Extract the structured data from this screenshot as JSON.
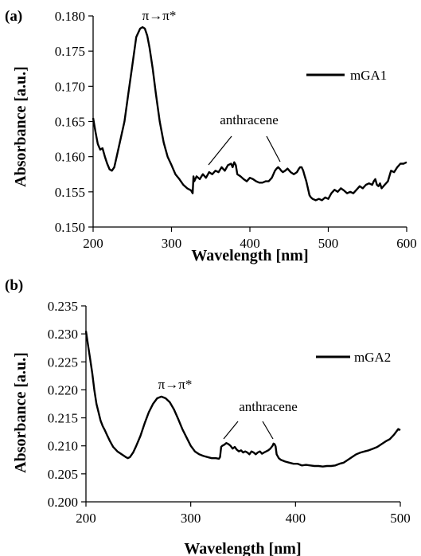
{
  "chart_data": [
    {
      "type": "line",
      "panel_label": "(a)",
      "title": "",
      "xlabel": "Wavelength [nm]",
      "ylabel": "Absorbance [a.u.]",
      "xlim": [
        200,
        600
      ],
      "ylim": [
        0.15,
        0.18
      ],
      "xticks": [
        "200",
        "300",
        "400",
        "500",
        "600"
      ],
      "yticks": [
        "0.150",
        "0.155",
        "0.160",
        "0.165",
        "0.170",
        "0.175",
        "0.180"
      ],
      "legend": "top-right",
      "annotations": {
        "peak": "π→π*",
        "anthracene": "anthracene"
      },
      "series": [
        {
          "name": "mGA1",
          "color": "#000000",
          "x": [
            200,
            203,
            206,
            209,
            212,
            215,
            218,
            221,
            224,
            227,
            230,
            235,
            240,
            245,
            250,
            255,
            260,
            263,
            266,
            269,
            272,
            276,
            280,
            285,
            290,
            295,
            300,
            305,
            310,
            315,
            320,
            325,
            327,
            328,
            329,
            332,
            336,
            340,
            344,
            348,
            352,
            356,
            360,
            364,
            368,
            372,
            376,
            378,
            380,
            382,
            384,
            388,
            392,
            396,
            400,
            404,
            408,
            412,
            416,
            420,
            424,
            428,
            432,
            434,
            436,
            438,
            440,
            442,
            445,
            448,
            452,
            456,
            460,
            462,
            464,
            466,
            468,
            470,
            472,
            474,
            476,
            478,
            480,
            484,
            488,
            492,
            496,
            500,
            504,
            508,
            512,
            516,
            520,
            524,
            528,
            532,
            536,
            540,
            544,
            548,
            552,
            556,
            558,
            560,
            562,
            564,
            566,
            568,
            572,
            576,
            580,
            584,
            588,
            592,
            596,
            600
          ],
          "values": [
            0.1655,
            0.1635,
            0.1618,
            0.161,
            0.1612,
            0.16,
            0.159,
            0.1582,
            0.158,
            0.1585,
            0.16,
            0.1625,
            0.165,
            0.169,
            0.173,
            0.177,
            0.1782,
            0.1784,
            0.1782,
            0.1772,
            0.1755,
            0.1725,
            0.169,
            0.165,
            0.162,
            0.16,
            0.1588,
            0.1575,
            0.1568,
            0.156,
            0.1555,
            0.1552,
            0.1548,
            0.1572,
            0.1565,
            0.1572,
            0.1568,
            0.1575,
            0.157,
            0.1578,
            0.1575,
            0.158,
            0.1578,
            0.1585,
            0.158,
            0.1588,
            0.159,
            0.1585,
            0.1592,
            0.1588,
            0.1575,
            0.1572,
            0.1568,
            0.1565,
            0.157,
            0.1568,
            0.1565,
            0.1563,
            0.1563,
            0.1565,
            0.1565,
            0.157,
            0.158,
            0.1583,
            0.1585,
            0.1583,
            0.158,
            0.1578,
            0.158,
            0.1583,
            0.1578,
            0.1575,
            0.1578,
            0.1582,
            0.1585,
            0.1585,
            0.158,
            0.1572,
            0.1565,
            0.1555,
            0.1545,
            0.1542,
            0.154,
            0.1538,
            0.154,
            0.1538,
            0.1542,
            0.154,
            0.1548,
            0.1553,
            0.155,
            0.1555,
            0.1552,
            0.1548,
            0.155,
            0.1548,
            0.1553,
            0.1558,
            0.1555,
            0.156,
            0.1562,
            0.156,
            0.1565,
            0.1568,
            0.156,
            0.1558,
            0.1562,
            0.1555,
            0.156,
            0.1565,
            0.158,
            0.1578,
            0.1585,
            0.159,
            0.159,
            0.1592
          ]
        }
      ]
    },
    {
      "type": "line",
      "panel_label": "(b)",
      "title": "",
      "xlabel": "Wavelength [nm]",
      "ylabel": "Absorbance [a.u.]",
      "xlim": [
        200,
        500
      ],
      "ylim": [
        0.2,
        0.235
      ],
      "xticks": [
        "200",
        "300",
        "400",
        "500"
      ],
      "yticks": [
        "0.200",
        "0.205",
        "0.210",
        "0.215",
        "0.220",
        "0.225",
        "0.230",
        "0.235"
      ],
      "legend": "top-right",
      "annotations": {
        "peak": "π→π*",
        "anthracene": "anthracene"
      },
      "series": [
        {
          "name": "mGA2",
          "color": "#000000",
          "x": [
            200,
            202,
            204,
            206,
            208,
            210,
            212,
            214,
            216,
            218,
            220,
            223,
            226,
            230,
            234,
            238,
            240,
            242,
            245,
            248,
            252,
            256,
            260,
            264,
            268,
            272,
            276,
            280,
            284,
            288,
            292,
            296,
            300,
            304,
            308,
            312,
            316,
            320,
            324,
            327,
            328,
            329,
            330,
            332,
            334,
            336,
            338,
            340,
            342,
            344,
            346,
            348,
            350,
            352,
            354,
            356,
            358,
            360,
            362,
            364,
            366,
            368,
            370,
            372,
            374,
            376,
            378,
            379,
            380,
            381,
            382,
            384,
            386,
            390,
            394,
            398,
            402,
            406,
            410,
            414,
            418,
            422,
            426,
            430,
            434,
            438,
            442,
            446,
            450,
            454,
            458,
            462,
            466,
            470,
            474,
            478,
            482,
            486,
            490,
            494,
            498,
            500
          ],
          "values": [
            0.2305,
            0.228,
            0.2255,
            0.223,
            0.22,
            0.2175,
            0.216,
            0.2145,
            0.2135,
            0.2128,
            0.212,
            0.2108,
            0.2098,
            0.209,
            0.2085,
            0.208,
            0.2078,
            0.208,
            0.2088,
            0.21,
            0.2118,
            0.214,
            0.216,
            0.2175,
            0.2185,
            0.2188,
            0.2185,
            0.2178,
            0.2165,
            0.2148,
            0.213,
            0.2115,
            0.21,
            0.209,
            0.2085,
            0.2082,
            0.208,
            0.2078,
            0.2078,
            0.2077,
            0.208,
            0.2098,
            0.21,
            0.2102,
            0.2105,
            0.2103,
            0.21,
            0.2095,
            0.2098,
            0.2093,
            0.209,
            0.2092,
            0.2088,
            0.209,
            0.2088,
            0.2085,
            0.209,
            0.2088,
            0.2085,
            0.2088,
            0.209,
            0.2086,
            0.2088,
            0.209,
            0.2092,
            0.2095,
            0.21,
            0.2104,
            0.2103,
            0.2099,
            0.2085,
            0.2078,
            0.2075,
            0.2072,
            0.207,
            0.2068,
            0.2068,
            0.2065,
            0.2066,
            0.2065,
            0.2064,
            0.2064,
            0.2063,
            0.2064,
            0.2064,
            0.2065,
            0.2068,
            0.207,
            0.2075,
            0.208,
            0.2085,
            0.2088,
            0.209,
            0.2092,
            0.2095,
            0.2098,
            0.2103,
            0.2108,
            0.2112,
            0.212,
            0.213,
            0.2128
          ]
        }
      ]
    }
  ]
}
